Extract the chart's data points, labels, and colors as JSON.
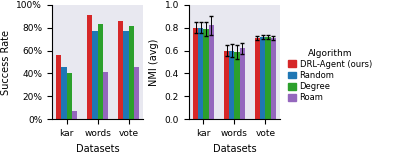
{
  "datasets": [
    "kar",
    "words",
    "vote"
  ],
  "algorithms": [
    "DRL-Agent (ours)",
    "Random",
    "Degree",
    "Roam"
  ],
  "colors": [
    "#d62728",
    "#1f77b4",
    "#2ca02c",
    "#9467bd"
  ],
  "success_rate": {
    "kar": [
      0.56,
      0.46,
      0.4,
      0.07
    ],
    "words": [
      0.91,
      0.77,
      0.83,
      0.41
    ],
    "vote": [
      0.86,
      0.77,
      0.81,
      0.46
    ]
  },
  "nmi_avg": {
    "kar": [
      0.8,
      0.8,
      0.79,
      0.82
    ],
    "words": [
      0.6,
      0.6,
      0.59,
      0.62
    ],
    "vote": [
      0.71,
      0.72,
      0.72,
      0.71
    ]
  },
  "nmi_err": {
    "kar": [
      0.05,
      0.05,
      0.06,
      0.08
    ],
    "words": [
      0.05,
      0.06,
      0.06,
      0.05
    ],
    "vote": [
      0.02,
      0.02,
      0.02,
      0.02
    ]
  },
  "ylabel_left": "Success Rate",
  "ylabel_right": "NMI (avg)",
  "xlabel": "Datasets",
  "legend_title": "Algorithm",
  "bg_color": "#e8e8f0"
}
